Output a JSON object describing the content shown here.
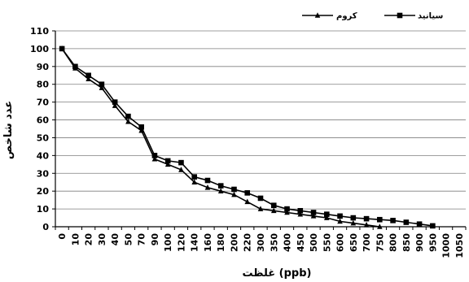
{
  "chart_data": {
    "type": "line",
    "title": "",
    "xlabel": "غلظت (ppb)",
    "ylabel": "عدد شاخص",
    "categories": [
      "0",
      "10",
      "20",
      "30",
      "40",
      "50",
      "70",
      "90",
      "100",
      "120",
      "140",
      "160",
      "180",
      "200",
      "220",
      "300",
      "350",
      "400",
      "450",
      "500",
      "550",
      "600",
      "650",
      "700",
      "750",
      "800",
      "850",
      "900",
      "950",
      "1000",
      "1050"
    ],
    "ylim": [
      0,
      110
    ],
    "yticks": [
      "0",
      "10",
      "20",
      "30",
      "40",
      "50",
      "60",
      "70",
      "80",
      "90",
      "100",
      "110"
    ],
    "grid": true,
    "legend_position": "top-right",
    "series": [
      {
        "name": "سیانید",
        "marker": "square",
        "values": [
          100,
          90,
          85,
          80,
          70,
          62,
          56,
          40,
          37,
          36,
          28,
          26,
          23,
          21,
          19,
          16,
          12,
          10,
          9,
          8,
          7,
          6,
          5,
          4.5,
          4,
          3.5,
          2.5,
          1.5,
          0.5,
          null,
          null
        ]
      },
      {
        "name": "کروم",
        "marker": "triangle",
        "values": [
          100,
          89,
          83,
          78,
          68,
          59,
          54,
          38,
          35,
          32,
          25,
          22,
          20,
          18,
          14,
          10,
          9,
          8,
          7,
          6,
          5,
          3,
          2,
          1,
          0,
          null,
          null,
          null,
          null,
          null,
          null
        ]
      }
    ]
  },
  "colors": {
    "line": "#000000",
    "grid": "#7f7f7f",
    "axis": "#000000"
  }
}
